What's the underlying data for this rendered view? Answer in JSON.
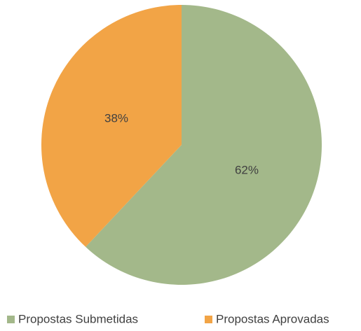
{
  "chart_data": {
    "type": "pie",
    "categories": [
      "Propostas Submetidas",
      "Propostas Aprovadas"
    ],
    "values": [
      62,
      38
    ],
    "value_labels": [
      "62%",
      "38%"
    ],
    "colors": [
      "#a3b88a",
      "#f2a446"
    ],
    "legend": "bottom"
  }
}
